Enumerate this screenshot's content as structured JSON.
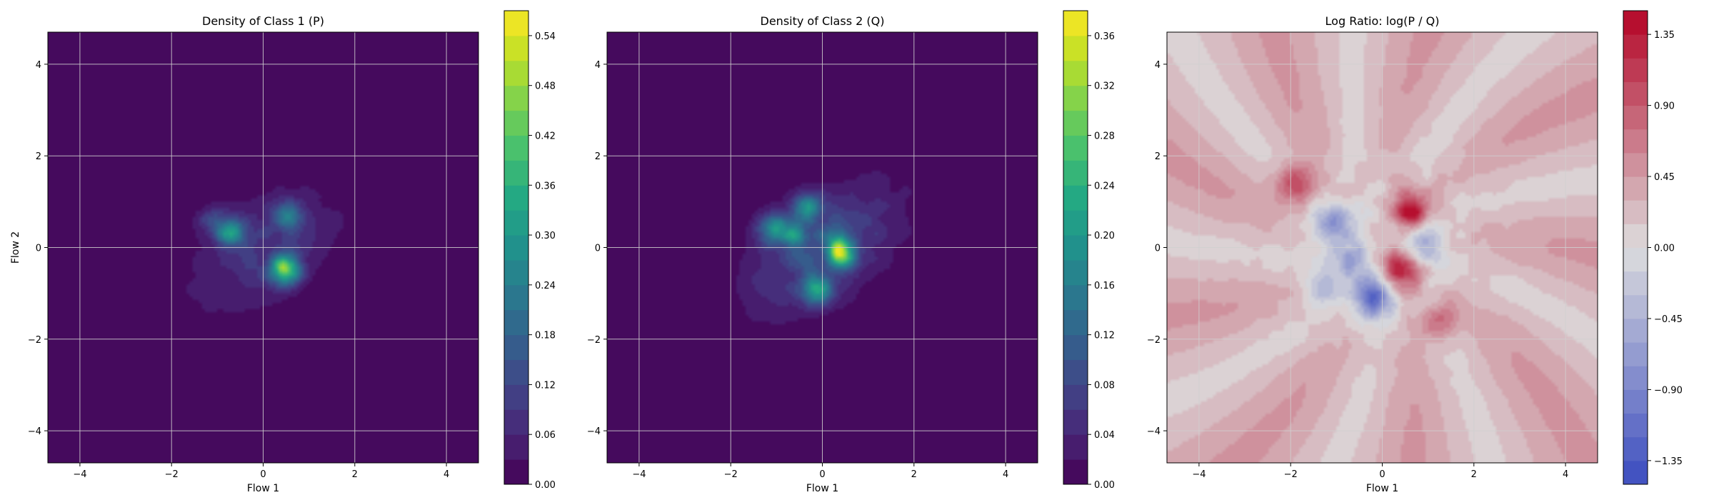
{
  "colors": {
    "background": "#ffffff",
    "grid": "#d0d0d0",
    "viridis": [
      "#440154",
      "#482475",
      "#414487",
      "#355f8d",
      "#2a788e",
      "#21918c",
      "#22a884",
      "#44bf70",
      "#7ad151",
      "#bddf26",
      "#fde725"
    ],
    "coolwarm_low": "#3b4cc0",
    "coolwarm_mid": "#dddddd",
    "coolwarm_high": "#b40426"
  },
  "chart_data": [
    {
      "type": "heatmap",
      "title": "Density of Class 1 (P)",
      "xlabel": "Flow 1",
      "ylabel": "Flow 2",
      "xlim": [
        -4.7,
        4.7
      ],
      "ylim": [
        -4.7,
        4.7
      ],
      "xticks": [
        -4,
        -2,
        0,
        2,
        4
      ],
      "yticks": [
        -4,
        -2,
        0,
        2,
        4
      ],
      "grid": true,
      "colormap": "viridis",
      "colorbar": {
        "min": 0.0,
        "max": 0.57,
        "ticks": [
          "0.00",
          "0.06",
          "0.12",
          "0.18",
          "0.24",
          "0.30",
          "0.36",
          "0.42",
          "0.48",
          "0.54"
        ],
        "levels": 19
      },
      "density_peaks": [
        {
          "x": -0.7,
          "y": 0.3,
          "value": 0.28
        },
        {
          "x": 0.5,
          "y": 0.7,
          "value": 0.22
        },
        {
          "x": 0.5,
          "y": -0.5,
          "value": 0.55
        },
        {
          "x": -1.1,
          "y": 0.6,
          "value": 0.15
        }
      ]
    },
    {
      "type": "heatmap",
      "title": "Density of Class 2 (Q)",
      "xlabel": "Flow 1",
      "ylabel": "",
      "xlim": [
        -4.7,
        4.7
      ],
      "ylim": [
        -4.7,
        4.7
      ],
      "xticks": [
        -4,
        -2,
        0,
        2,
        4
      ],
      "yticks": [
        -4,
        -2,
        0,
        2,
        4
      ],
      "grid": true,
      "colormap": "viridis",
      "colorbar": {
        "min": 0.0,
        "max": 0.38,
        "ticks": [
          "0.00",
          "0.04",
          "0.08",
          "0.12",
          "0.16",
          "0.20",
          "0.24",
          "0.28",
          "0.32",
          "0.36"
        ],
        "levels": 19
      },
      "density_peaks": [
        {
          "x": -1.1,
          "y": 0.4,
          "value": 0.22
        },
        {
          "x": -0.3,
          "y": 0.9,
          "value": 0.2
        },
        {
          "x": 0.4,
          "y": -0.1,
          "value": 0.3
        },
        {
          "x": -0.1,
          "y": -0.9,
          "value": 0.22
        },
        {
          "x": -0.6,
          "y": 0.2,
          "value": 0.18
        }
      ]
    },
    {
      "type": "heatmap",
      "title": "Log Ratio: log(P / Q)",
      "xlabel": "Flow 1",
      "ylabel": "",
      "xlim": [
        -4.7,
        4.7
      ],
      "ylim": [
        -4.7,
        4.7
      ],
      "xticks": [
        -4,
        -2,
        0,
        2,
        4
      ],
      "yticks": [
        -4,
        -2,
        0,
        2,
        4
      ],
      "grid": true,
      "colormap": "coolwarm",
      "colorbar": {
        "min": -1.5,
        "max": 1.5,
        "ticks": [
          "-1.35",
          "-0.90",
          "-0.45",
          "0.00",
          "0.45",
          "0.90",
          "1.35"
        ],
        "levels": 20
      },
      "background_value": 0.3,
      "features": [
        {
          "x": 0.6,
          "y": 0.8,
          "value": 1.4
        },
        {
          "x": -1.9,
          "y": 1.4,
          "value": 0.9
        },
        {
          "x": 0.4,
          "y": -0.5,
          "value": 1.3
        },
        {
          "x": 1.2,
          "y": -1.6,
          "value": 0.6
        },
        {
          "x": -0.2,
          "y": -1.1,
          "value": -1.3
        },
        {
          "x": -1.1,
          "y": 0.5,
          "value": -0.9
        },
        {
          "x": 0.9,
          "y": 0.1,
          "value": -0.8
        },
        {
          "x": -0.7,
          "y": -0.3,
          "value": -0.6
        },
        {
          "x": -1.3,
          "y": -0.9,
          "value": -0.5
        }
      ]
    }
  ]
}
